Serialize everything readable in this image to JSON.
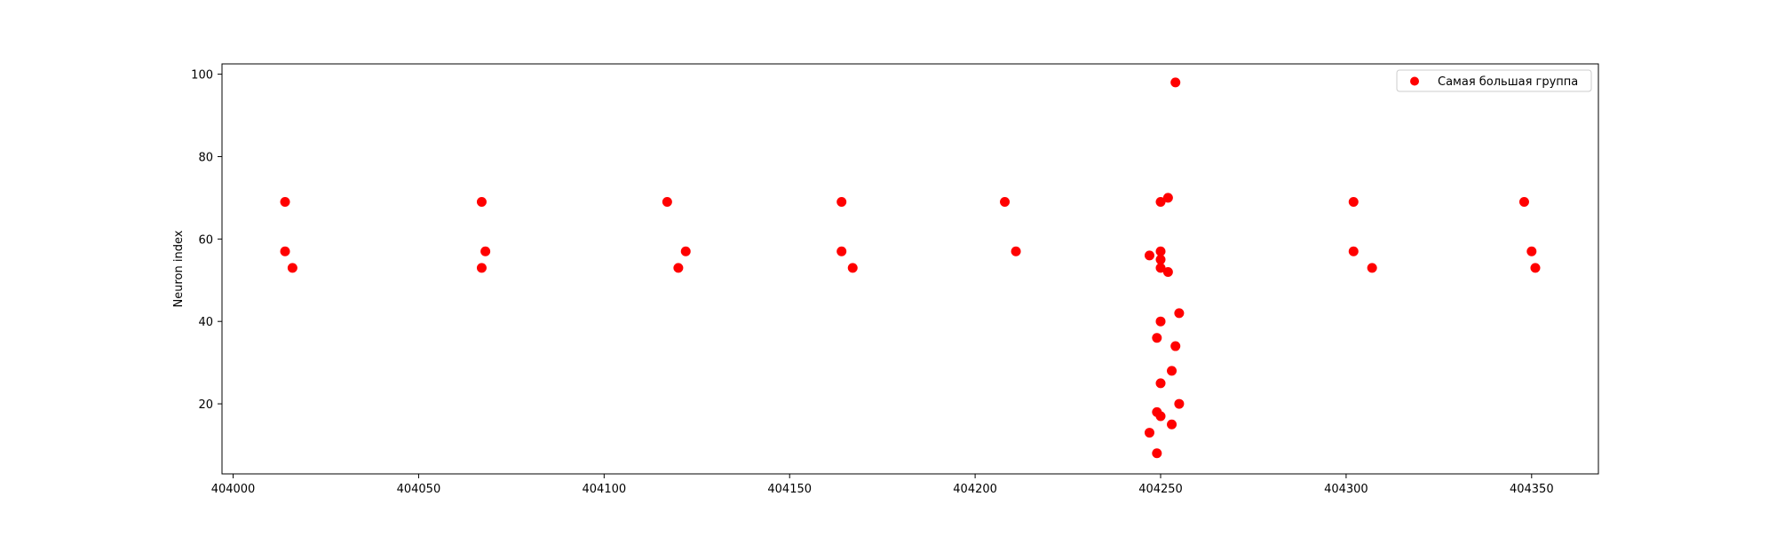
{
  "chart_data": {
    "type": "scatter",
    "title": "",
    "xlabel": "",
    "ylabel": "Neuron index",
    "xlim": [
      403997,
      404368
    ],
    "ylim": [
      3,
      102.5
    ],
    "xticks": [
      404000,
      404050,
      404100,
      404150,
      404200,
      404250,
      404300,
      404350
    ],
    "yticks": [
      20,
      40,
      60,
      80,
      100
    ],
    "grid": false,
    "legend_position": "upper right",
    "series": [
      {
        "name": "Самая большая группа",
        "color": "#ff0000",
        "marker": "circle",
        "points": [
          [
            404014,
            69
          ],
          [
            404014,
            57
          ],
          [
            404016,
            53
          ],
          [
            404067,
            69
          ],
          [
            404067,
            53
          ],
          [
            404068,
            57
          ],
          [
            404117,
            69
          ],
          [
            404120,
            53
          ],
          [
            404122,
            57
          ],
          [
            404164,
            69
          ],
          [
            404164,
            57
          ],
          [
            404167,
            53
          ],
          [
            404208,
            69
          ],
          [
            404211,
            57
          ],
          [
            404247,
            56
          ],
          [
            404247,
            13
          ],
          [
            404249,
            8
          ],
          [
            404249,
            18
          ],
          [
            404249,
            36
          ],
          [
            404250,
            55
          ],
          [
            404250,
            17
          ],
          [
            404250,
            40
          ],
          [
            404250,
            69
          ],
          [
            404250,
            57
          ],
          [
            404250,
            53
          ],
          [
            404250,
            25
          ],
          [
            404252,
            70
          ],
          [
            404252,
            52
          ],
          [
            404253,
            28
          ],
          [
            404253,
            15
          ],
          [
            404254,
            98
          ],
          [
            404254,
            34
          ],
          [
            404255,
            42
          ],
          [
            404255,
            20
          ],
          [
            404302,
            69
          ],
          [
            404302,
            57
          ],
          [
            404307,
            53
          ],
          [
            404348,
            69
          ],
          [
            404350,
            57
          ],
          [
            404351,
            53
          ]
        ]
      }
    ]
  }
}
